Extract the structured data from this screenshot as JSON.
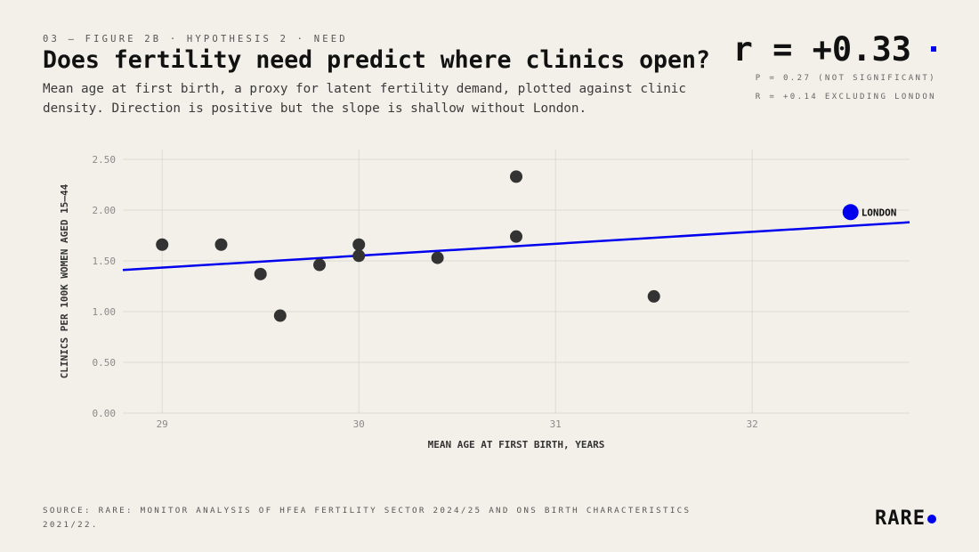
{
  "header": {
    "eyebrow": "03 — FIGURE 2B · HYPOTHESIS 2 · NEED",
    "title": "Does fertility need predict where clinics open?",
    "subtitle": "Mean age at first birth, a proxy for latent fertility demand, plotted against clinic density. Direction is positive but the slope is shallow without London."
  },
  "stat": {
    "value": "r = +0.33",
    "note_p": "P = 0.27 (NOT SIGNIFICANT)",
    "note_r": "R = +0.14 EXCLUDING LONDON"
  },
  "footer": {
    "source": "SOURCE: RARE: MONITOR ANALYSIS OF HFEA FERTILITY SECTOR 2024/25 AND ONS BIRTH CHARACTERISTICS 2021/22.",
    "brand": "RARE"
  },
  "colors": {
    "background": "#f3f0ea",
    "accent": "#0000ee",
    "point": "#333333",
    "grid": "#dedad3"
  },
  "chart_data": {
    "type": "scatter",
    "xlabel": "MEAN AGE AT FIRST BIRTH, YEARS",
    "ylabel": "CLINICS PER 100K WOMEN AGED 15–44",
    "xlim": [
      28.8,
      32.8
    ],
    "ylim": [
      0,
      2.6
    ],
    "x_ticks": [
      29,
      30,
      31,
      32
    ],
    "y_ticks": [
      0,
      0.5,
      1.0,
      1.5,
      2.0,
      2.5
    ],
    "y_tick_labels": [
      "0.00",
      "0.50",
      "1.00",
      "1.50",
      "2.00",
      "2.50"
    ],
    "x_tick_labels": [
      "29",
      "30",
      "31",
      "32"
    ],
    "grid": true,
    "series": [
      {
        "points": [
          {
            "x": 29.0,
            "y": 1.66
          },
          {
            "x": 29.3,
            "y": 1.66
          },
          {
            "x": 29.5,
            "y": 1.37
          },
          {
            "x": 29.6,
            "y": 0.96
          },
          {
            "x": 29.8,
            "y": 1.46
          },
          {
            "x": 30.0,
            "y": 1.66
          },
          {
            "x": 30.0,
            "y": 1.55
          },
          {
            "x": 30.4,
            "y": 1.53
          },
          {
            "x": 30.8,
            "y": 2.33
          },
          {
            "x": 30.8,
            "y": 1.74
          },
          {
            "x": 31.5,
            "y": 1.15
          }
        ]
      },
      {
        "name": "LONDON",
        "points": [
          {
            "x": 32.5,
            "y": 1.98
          }
        ]
      }
    ],
    "trendline": {
      "x": [
        28.8,
        32.8
      ],
      "y": [
        1.41,
        1.88
      ]
    }
  }
}
